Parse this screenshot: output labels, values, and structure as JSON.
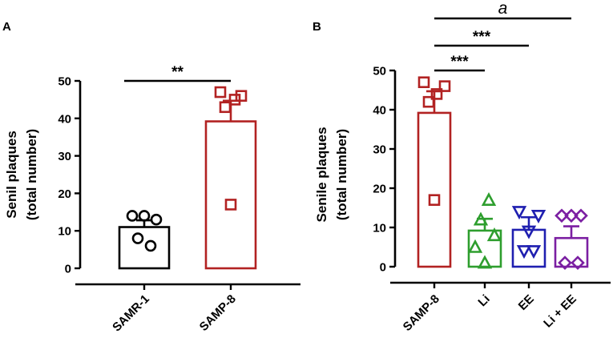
{
  "chart_data": [
    {
      "panel": "A",
      "type": "bar",
      "title": "",
      "ylabel_line1": "Senil plaques",
      "ylabel_line2": "(total number)",
      "ylim": [
        0,
        50
      ],
      "yticks": [
        0,
        10,
        20,
        30,
        40,
        50
      ],
      "categories": [
        "SAMR-1",
        "SAMP-8"
      ],
      "values": [
        11,
        39.2
      ],
      "errors": [
        1.8,
        5.5
      ],
      "colors": [
        "#000000",
        "#b22222"
      ],
      "markers": [
        "circle",
        "square"
      ],
      "points": [
        [
          14,
          14,
          13,
          8,
          6
        ],
        [
          47,
          46,
          45,
          43,
          17
        ]
      ],
      "significance": [
        {
          "from": 0,
          "to": 1,
          "label": "**"
        }
      ]
    },
    {
      "panel": "B",
      "type": "bar",
      "title": "",
      "ylabel_line1": "Senile plaques",
      "ylabel_line2": "(total number)",
      "ylim": [
        0,
        50
      ],
      "yticks": [
        0,
        10,
        20,
        30,
        40,
        50
      ],
      "categories": [
        "SAMP-8",
        "Li",
        "EE",
        "Li + EE"
      ],
      "values": [
        39.2,
        9.2,
        9.4,
        7.3
      ],
      "errors": [
        5.5,
        3.0,
        3.2,
        3.0
      ],
      "colors": [
        "#b22222",
        "#2e9e2e",
        "#1f1fb0",
        "#7b1fa2"
      ],
      "markers": [
        "square",
        "triangle-up",
        "triangle-down",
        "diamond"
      ],
      "points": [
        [
          47,
          46,
          44,
          42,
          17
        ],
        [
          17,
          12,
          8,
          5,
          1
        ],
        [
          14,
          13,
          9,
          4,
          4
        ],
        [
          13,
          13,
          13,
          1,
          1
        ]
      ],
      "significance": [
        {
          "from": 0,
          "to": 1,
          "label": "***"
        },
        {
          "from": 0,
          "to": 2,
          "label": "***"
        },
        {
          "from": 0,
          "to": 3,
          "label": "a"
        }
      ]
    }
  ]
}
